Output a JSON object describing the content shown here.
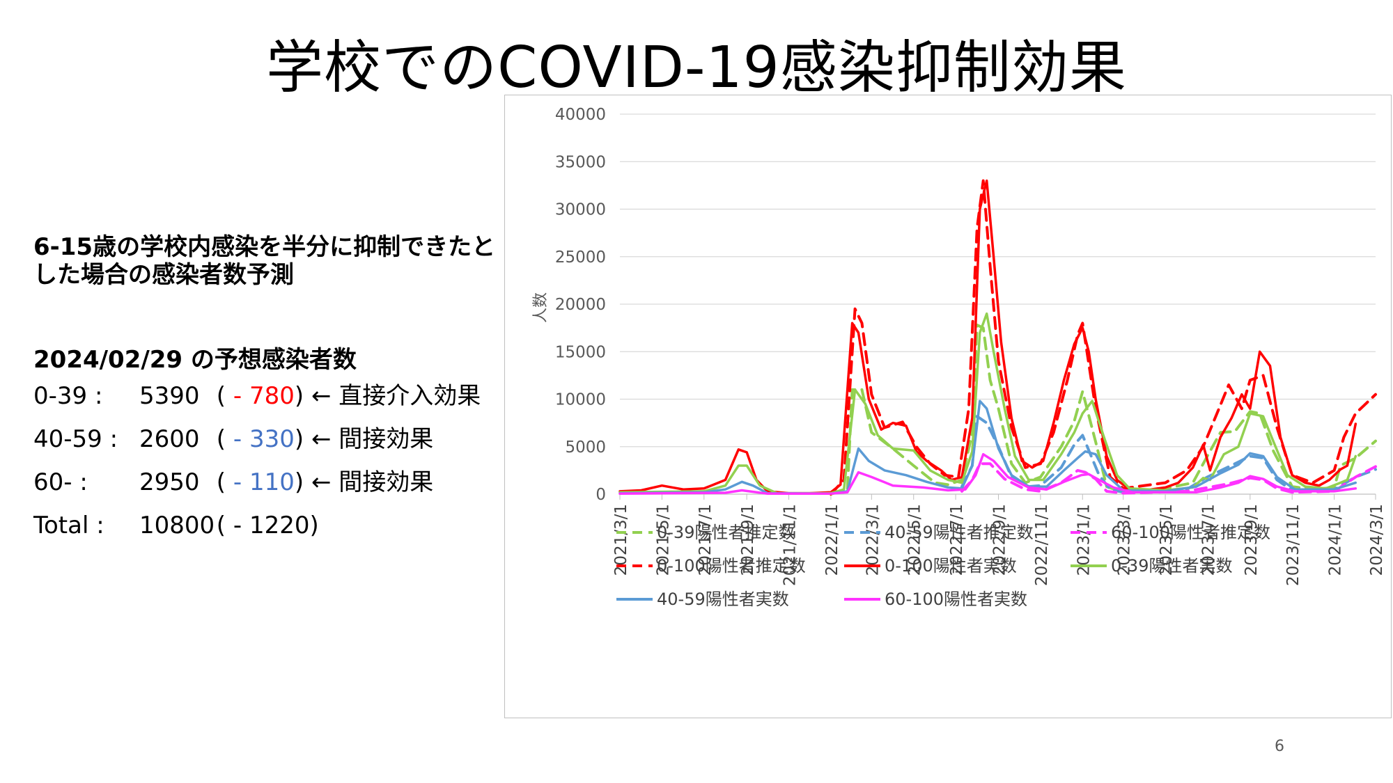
{
  "slide": {
    "title": "学校でのCOVID-19感染抑制効果",
    "page_number": "6"
  },
  "left_panel": {
    "intro": "6-15歳の学校内感染を半分に抑制できたとした場合の感染者数予測",
    "prediction_heading": "2024/02/29 の予想感染者数",
    "rows": [
      {
        "label": "0-39 :",
        "value": "5390",
        "delta": "- 780",
        "delta_color": "#ff0000",
        "effect": "← 直接介入効果"
      },
      {
        "label": "40-59 :",
        "value": "2600",
        "delta": "- 330",
        "delta_color": "#4472c4",
        "effect": "← 間接効果"
      },
      {
        "label": "60- :",
        "value": "2950",
        "delta": "- 110",
        "delta_color": "#4472c4",
        "effect": "← 間接効果"
      },
      {
        "label": "Total :",
        "value": "10800",
        "delta": "- 1220",
        "delta_color": "#000000",
        "effect": ""
      }
    ]
  },
  "chart_data": {
    "type": "line",
    "title": "",
    "xlabel": "",
    "ylabel": "人数",
    "ylim": [
      0,
      40000
    ],
    "yticks": [
      0,
      5000,
      10000,
      15000,
      20000,
      25000,
      30000,
      35000,
      40000
    ],
    "xlim": [
      "2021-03-01",
      "2024-03-01"
    ],
    "xticks": [
      "2021/3/1",
      "2021/5/1",
      "2021/7/1",
      "2021/9/1",
      "2021/11/1",
      "2022/1/1",
      "2022/3/1",
      "2022/5/1",
      "2022/7/1",
      "2022/9/1",
      "2022/11/1",
      "2023/1/1",
      "2023/3/1",
      "2023/5/1",
      "2023/7/1",
      "2023/9/1",
      "2023/11/1",
      "2024/1/1",
      "2024/3/1"
    ],
    "grid": "horizontal",
    "legend_position": "bottom",
    "series": [
      {
        "name": "0-39陽性者推定数",
        "color": "#92d050",
        "style": "dashed",
        "x": [
          "2022-01-01",
          "2022-01-25",
          "2022-02-01",
          "2022-02-15",
          "2022-03-01",
          "2022-04-01",
          "2022-05-01",
          "2022-06-01",
          "2022-06-20",
          "2022-07-10",
          "2022-07-25",
          "2022-08-01",
          "2022-08-10",
          "2022-08-20",
          "2022-09-01",
          "2022-09-20",
          "2022-10-10",
          "2022-11-01",
          "2022-12-01",
          "2022-12-20",
          "2023-01-01",
          "2023-01-20",
          "2023-02-05",
          "2023-03-01",
          "2023-05-01",
          "2023-06-10",
          "2023-07-01",
          "2023-07-20",
          "2023-08-10",
          "2023-09-01",
          "2023-09-15",
          "2023-10-05",
          "2023-11-01",
          "2023-12-01",
          "2024-01-01",
          "2024-01-10",
          "2024-02-01",
          "2024-03-01"
        ],
        "values": [
          0,
          500,
          11000,
          11000,
          6500,
          4800,
          3000,
          1200,
          1000,
          1500,
          6500,
          17800,
          17500,
          12000,
          9000,
          3200,
          1200,
          1800,
          5000,
          7700,
          10800,
          5500,
          800,
          200,
          600,
          1200,
          4000,
          6500,
          6600,
          8700,
          8500,
          4500,
          800,
          500,
          700,
          3000,
          3800,
          5600
        ]
      },
      {
        "name": "40-59陽性者推定数",
        "color": "#5b9bd5",
        "style": "dashed",
        "x": [
          "2022-07-10",
          "2022-07-25",
          "2022-08-01",
          "2022-08-15",
          "2022-09-01",
          "2022-09-20",
          "2022-10-15",
          "2022-11-01",
          "2022-12-01",
          "2022-12-20",
          "2023-01-01",
          "2023-01-25",
          "2023-02-10",
          "2023-03-01",
          "2023-06-01",
          "2023-07-01",
          "2023-08-10",
          "2023-09-01",
          "2023-09-20",
          "2023-10-10",
          "2023-11-01",
          "2024-01-01",
          "2024-02-01",
          "2024-03-01"
        ],
        "values": [
          800,
          3000,
          8200,
          7500,
          5000,
          1800,
          800,
          900,
          2800,
          5200,
          6200,
          2000,
          500,
          200,
          500,
          1800,
          3200,
          4000,
          3800,
          1500,
          400,
          500,
          1800,
          2600
        ]
      },
      {
        "name": "60-100陽性者推定数",
        "color": "#ff33ff",
        "style": "dashed",
        "x": [
          "2022-07-10",
          "2022-07-25",
          "2022-08-05",
          "2022-08-20",
          "2022-09-10",
          "2022-10-10",
          "2022-11-01",
          "2022-12-01",
          "2022-12-25",
          "2023-01-05",
          "2023-01-20",
          "2023-02-05",
          "2023-03-01",
          "2023-06-01",
          "2023-08-01",
          "2023-09-01",
          "2023-09-20",
          "2023-10-10",
          "2023-11-01",
          "2024-01-01",
          "2024-02-01",
          "2024-03-01"
        ],
        "values": [
          300,
          1500,
          3200,
          3200,
          1600,
          500,
          300,
          1200,
          2500,
          2300,
          1600,
          300,
          100,
          300,
          1100,
          1700,
          1500,
          600,
          200,
          300,
          1800,
          2900
        ]
      },
      {
        "name": "0-100陽性者推定数",
        "color": "#ff0000",
        "style": "dashed",
        "x": [
          "2022-01-01",
          "2022-01-20",
          "2022-02-05",
          "2022-02-15",
          "2022-03-01",
          "2022-03-20",
          "2022-04-15",
          "2022-05-05",
          "2022-05-25",
          "2022-06-15",
          "2022-07-05",
          "2022-07-20",
          "2022-08-01",
          "2022-08-10",
          "2022-08-20",
          "2022-09-01",
          "2022-09-20",
          "2022-10-10",
          "2022-11-01",
          "2022-11-20",
          "2022-12-10",
          "2022-12-25",
          "2023-01-01",
          "2023-01-20",
          "2023-02-10",
          "2023-03-01",
          "2023-05-01",
          "2023-06-01",
          "2023-06-25",
          "2023-07-15",
          "2023-08-01",
          "2023-08-20",
          "2023-09-01",
          "2023-09-20",
          "2023-10-10",
          "2023-11-01",
          "2023-12-01",
          "2024-01-01",
          "2024-01-15",
          "2024-02-01",
          "2024-03-01"
        ],
        "values": [
          0,
          1500,
          19500,
          18000,
          10500,
          7000,
          7600,
          5000,
          3200,
          2000,
          1800,
          9000,
          28000,
          33000,
          24000,
          14000,
          7000,
          2800,
          3200,
          6500,
          12000,
          16800,
          18000,
          9000,
          1800,
          600,
          1200,
          2500,
          5000,
          8500,
          11500,
          9000,
          12000,
          12500,
          7000,
          2000,
          1200,
          2500,
          6000,
          8500,
          10500
        ]
      },
      {
        "name": "0-100陽性者実数",
        "color": "#ff0000",
        "style": "solid",
        "x": [
          "2021-03-01",
          "2021-04-01",
          "2021-05-01",
          "2021-06-01",
          "2021-07-01",
          "2021-08-01",
          "2021-08-20",
          "2021-09-01",
          "2021-09-15",
          "2021-10-01",
          "2021-11-01",
          "2021-12-01",
          "2022-01-01",
          "2022-01-15",
          "2022-02-01",
          "2022-02-10",
          "2022-02-25",
          "2022-03-15",
          "2022-04-01",
          "2022-04-20",
          "2022-05-05",
          "2022-05-20",
          "2022-06-10",
          "2022-06-25",
          "2022-07-10",
          "2022-07-25",
          "2022-08-05",
          "2022-08-15",
          "2022-08-25",
          "2022-09-05",
          "2022-09-20",
          "2022-10-05",
          "2022-10-20",
          "2022-11-05",
          "2022-11-20",
          "2022-12-05",
          "2022-12-20",
          "2023-01-01",
          "2023-01-10",
          "2023-01-20",
          "2023-02-05",
          "2023-02-20",
          "2023-03-10",
          "2023-04-01",
          "2023-05-01",
          "2023-05-20",
          "2023-06-10",
          "2023-06-25",
          "2023-07-05",
          "2023-07-20",
          "2023-08-05",
          "2023-08-20",
          "2023-09-01",
          "2023-09-15",
          "2023-09-30",
          "2023-10-15",
          "2023-11-01",
          "2023-11-20",
          "2023-12-10",
          "2023-12-25",
          "2024-01-10",
          "2024-01-20",
          "2024-02-01"
        ],
        "values": [
          300,
          400,
          900,
          500,
          600,
          1500,
          4700,
          4400,
          1500,
          300,
          100,
          100,
          200,
          1000,
          18000,
          17000,
          10000,
          6800,
          7500,
          7200,
          4500,
          3500,
          2500,
          1500,
          1800,
          8000,
          30000,
          33000,
          25000,
          16000,
          8000,
          3500,
          2800,
          3500,
          7500,
          12000,
          15800,
          17500,
          15000,
          10000,
          4000,
          1500,
          500,
          400,
          700,
          1200,
          2800,
          5200,
          2500,
          6000,
          8000,
          10500,
          9000,
          15000,
          13500,
          6000,
          2000,
          1200,
          900,
          1500,
          2600,
          3000,
          7400
        ]
      },
      {
        "name": "0-39陽性者実数",
        "color": "#92d050",
        "style": "solid",
        "x": [
          "2021-03-01",
          "2021-07-01",
          "2021-08-01",
          "2021-08-20",
          "2021-09-01",
          "2021-09-20",
          "2021-10-15",
          "2022-01-01",
          "2022-01-20",
          "2022-02-05",
          "2022-02-20",
          "2022-03-10",
          "2022-04-01",
          "2022-05-01",
          "2022-05-25",
          "2022-06-20",
          "2022-07-10",
          "2022-07-25",
          "2022-08-05",
          "2022-08-15",
          "2022-08-25",
          "2022-09-10",
          "2022-09-25",
          "2022-10-15",
          "2022-11-05",
          "2022-12-01",
          "2022-12-20",
          "2023-01-01",
          "2023-01-15",
          "2023-02-01",
          "2023-02-20",
          "2023-03-10",
          "2023-05-01",
          "2023-06-10",
          "2023-06-25",
          "2023-07-05",
          "2023-07-25",
          "2023-08-15",
          "2023-09-01",
          "2023-09-20",
          "2023-10-05",
          "2023-10-25",
          "2023-11-20",
          "2023-12-20",
          "2024-01-10",
          "2024-01-20",
          "2024-02-01"
        ],
        "values": [
          200,
          300,
          900,
          3000,
          3000,
          900,
          100,
          100,
          500,
          11000,
          9500,
          6200,
          4800,
          4600,
          2500,
          1500,
          1200,
          4500,
          17000,
          19000,
          15000,
          9000,
          4000,
          1500,
          1500,
          4200,
          6500,
          8500,
          9800,
          6000,
          2000,
          600,
          400,
          700,
          1700,
          1500,
          4200,
          5000,
          8500,
          8200,
          5500,
          2000,
          800,
          600,
          1200,
          1500,
          4000
        ]
      },
      {
        "name": "40-59陽性者実数",
        "color": "#5b9bd5",
        "style": "solid",
        "x": [
          "2021-03-01",
          "2021-07-01",
          "2021-08-01",
          "2021-08-25",
          "2021-09-10",
          "2021-10-01",
          "2022-01-01",
          "2022-01-25",
          "2022-02-10",
          "2022-02-25",
          "2022-03-20",
          "2022-04-20",
          "2022-05-20",
          "2022-06-20",
          "2022-07-10",
          "2022-07-25",
          "2022-08-05",
          "2022-08-15",
          "2022-09-01",
          "2022-09-20",
          "2022-10-15",
          "2022-11-10",
          "2022-12-05",
          "2022-12-25",
          "2023-01-05",
          "2023-01-20",
          "2023-02-05",
          "2023-03-01",
          "2023-05-01",
          "2023-06-15",
          "2023-07-05",
          "2023-07-20",
          "2023-08-15",
          "2023-09-01",
          "2023-09-20",
          "2023-10-10",
          "2023-11-05",
          "2024-01-01",
          "2024-02-01"
        ],
        "values": [
          100,
          200,
          500,
          1300,
          900,
          100,
          50,
          300,
          4800,
          3500,
          2500,
          2000,
          1300,
          700,
          600,
          3000,
          9800,
          9000,
          4800,
          2000,
          800,
          800,
          2500,
          3800,
          4500,
          4200,
          2000,
          400,
          300,
          800,
          1600,
          2200,
          3100,
          4300,
          4000,
          1800,
          500,
          500,
          1200
        ]
      },
      {
        "name": "60-100陽性者実数",
        "color": "#ff33ff",
        "style": "solid",
        "x": [
          "2021-03-01",
          "2021-08-01",
          "2021-08-25",
          "2021-10-01",
          "2022-01-01",
          "2022-01-25",
          "2022-02-10",
          "2022-03-01",
          "2022-04-01",
          "2022-05-15",
          "2022-06-20",
          "2022-07-15",
          "2022-07-30",
          "2022-08-10",
          "2022-08-25",
          "2022-09-15",
          "2022-10-15",
          "2022-11-10",
          "2022-12-05",
          "2022-12-30",
          "2023-01-10",
          "2023-01-25",
          "2023-02-15",
          "2023-03-15",
          "2023-06-15",
          "2023-07-20",
          "2023-08-15",
          "2023-09-01",
          "2023-09-20",
          "2023-10-10",
          "2023-11-05",
          "2024-01-01",
          "2024-02-01"
        ],
        "values": [
          50,
          150,
          400,
          50,
          50,
          200,
          2300,
          1800,
          900,
          700,
          400,
          500,
          2000,
          4200,
          3500,
          1800,
          700,
          500,
          1300,
          2000,
          2100,
          1500,
          700,
          200,
          200,
          700,
          1200,
          1900,
          1600,
          800,
          300,
          300,
          600
        ]
      }
    ]
  }
}
